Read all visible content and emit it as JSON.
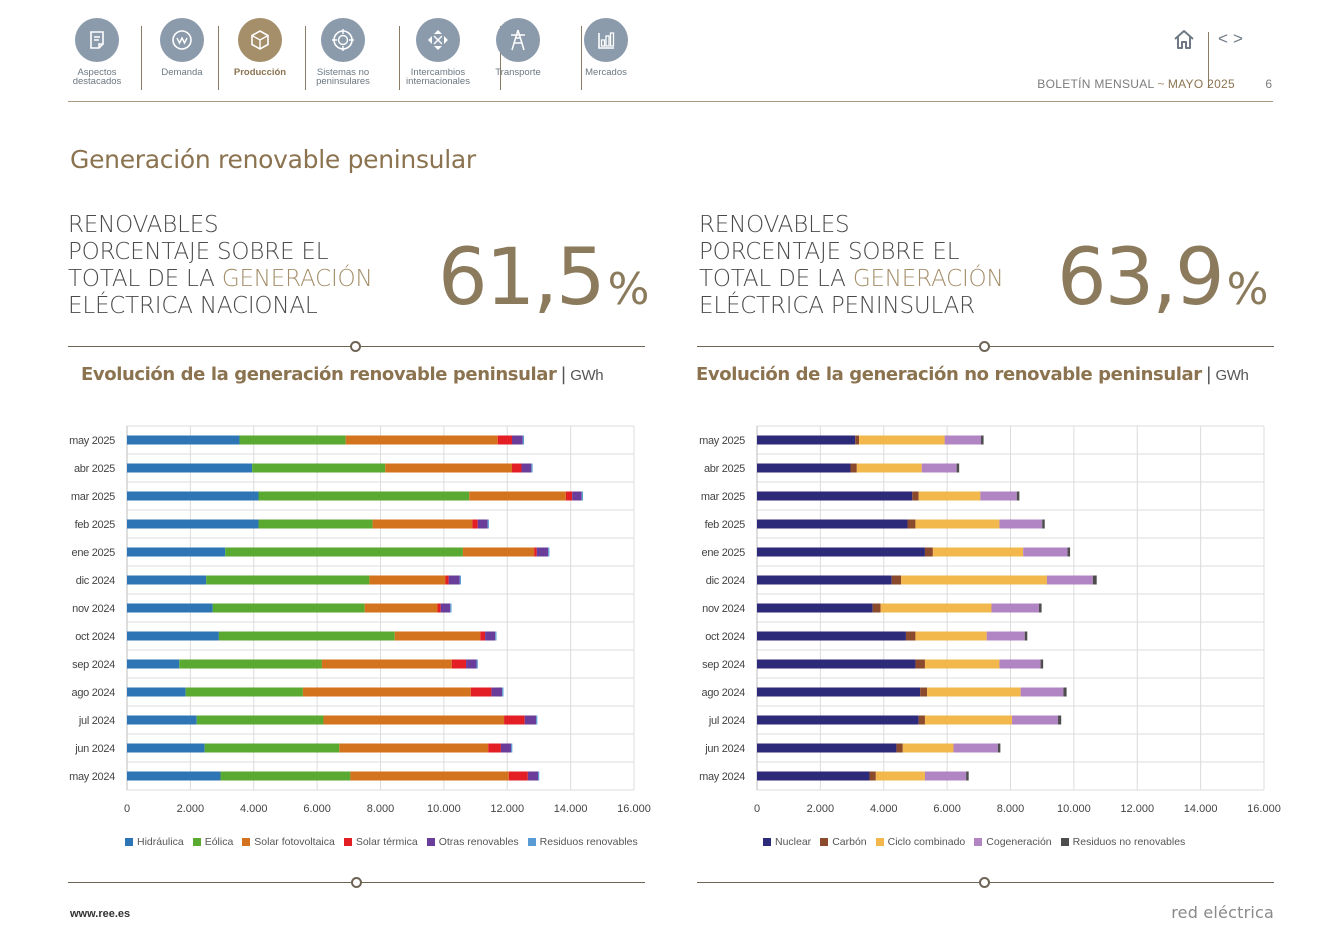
{
  "nav": {
    "items": [
      {
        "label": "Aspectos destacados",
        "icon": "document-icon",
        "active": false
      },
      {
        "label": "Demanda",
        "icon": "meter-icon",
        "active": false
      },
      {
        "label": "Producción",
        "icon": "cube-icon",
        "active": true
      },
      {
        "label": "Sistemas no peninsulares",
        "icon": "target-icon",
        "active": false
      },
      {
        "label": "Intercambios internacionales",
        "icon": "arrows-icon",
        "active": false
      },
      {
        "label": "Transporte",
        "icon": "tower-icon",
        "active": false
      },
      {
        "label": "Mercados",
        "icon": "bar-chart-icon",
        "active": false
      }
    ]
  },
  "header": {
    "prev": "<",
    "next": ">",
    "bulletin": "BOLETÍN MENSUAL",
    "separator": "~",
    "month": "MAYO 2025",
    "page": "6"
  },
  "page_title": "Generación renovable peninsular",
  "kpi_left": {
    "line1": "RENOVABLES",
    "line2": "PORCENTAJE SOBRE EL",
    "line3a": "TOTAL DE LA ",
    "line3b": "GENERACIÓN",
    "line4": "ELÉCTRICA NACIONAL",
    "value": "61,5",
    "unit": "%"
  },
  "kpi_right": {
    "line1": "RENOVABLES",
    "line2": "PORCENTAJE SOBRE EL",
    "line3a": "TOTAL DE LA ",
    "line3b": "GENERACIÓN",
    "line4": "ELÉCTRICA PENINSULAR",
    "value": "63,9",
    "unit": "%"
  },
  "footer": {
    "url": "www.ree.es",
    "brand": "red eléctrica"
  },
  "chart_data": [
    {
      "type": "bar",
      "orientation": "horizontal",
      "stacked": true,
      "title": "Evolución de la generación renovable peninsular",
      "unit": "GWh",
      "xlim": [
        0,
        16000
      ],
      "ticks": [
        0,
        2000,
        4000,
        6000,
        8000,
        10000,
        12000,
        14000,
        16000
      ],
      "tick_labels": [
        "0",
        "2.000",
        "4.000",
        "6.000",
        "8.000",
        "10.000",
        "12.000",
        "14.000",
        "16.000"
      ],
      "grid": true,
      "legend_position": "bottom",
      "categories": [
        "may 2025",
        "abr 2025",
        "mar 2025",
        "feb 2025",
        "ene 2025",
        "dic 2024",
        "nov 2024",
        "oct 2024",
        "sep 2024",
        "ago 2024",
        "jul 2024",
        "jun 2024",
        "may 2024"
      ],
      "series": [
        {
          "name": "Hidráulica",
          "color": "#2e75b6",
          "values": [
            3550,
            3950,
            4150,
            4150,
            3100,
            2500,
            2700,
            2900,
            1650,
            1850,
            2200,
            2450,
            2950
          ]
        },
        {
          "name": "Eólica",
          "color": "#5aaa32",
          "values": [
            3350,
            4200,
            6650,
            3600,
            7500,
            5150,
            4800,
            5550,
            4500,
            3700,
            4000,
            4250,
            4100
          ]
        },
        {
          "name": "Solar fotovoltaica",
          "color": "#d4731e",
          "values": [
            4800,
            4000,
            3050,
            3150,
            2250,
            2400,
            2300,
            2700,
            4100,
            5300,
            5700,
            4700,
            5000
          ]
        },
        {
          "name": "Solar térmica",
          "color": "#e31e24",
          "values": [
            450,
            300,
            200,
            170,
            80,
            100,
            100,
            150,
            450,
            650,
            650,
            400,
            600
          ]
        },
        {
          "name": "Otras renovables",
          "color": "#6a3d9a",
          "values": [
            340,
            310,
            300,
            310,
            360,
            350,
            300,
            320,
            330,
            340,
            360,
            320,
            320
          ]
        },
        {
          "name": "Residuos renovables",
          "color": "#5b9bd5",
          "values": [
            40,
            40,
            40,
            40,
            40,
            40,
            40,
            40,
            40,
            40,
            40,
            40,
            40
          ]
        }
      ]
    },
    {
      "type": "bar",
      "orientation": "horizontal",
      "stacked": true,
      "title": "Evolución de la generación no renovable peninsular",
      "unit": "GWh",
      "xlim": [
        0,
        16000
      ],
      "ticks": [
        0,
        2000,
        4000,
        6000,
        8000,
        10000,
        12000,
        14000,
        16000
      ],
      "tick_labels": [
        "0",
        "2.000",
        "4.000",
        "6.000",
        "8.000",
        "10.000",
        "12.000",
        "14.000",
        "16.000"
      ],
      "grid": true,
      "legend_position": "bottom",
      "categories": [
        "may 2025",
        "abr 2025",
        "mar 2025",
        "feb 2025",
        "ene 2025",
        "dic 2024",
        "nov 2024",
        "oct 2024",
        "sep 2024",
        "ago 2024",
        "jul 2024",
        "jun 2024",
        "may 2024"
      ],
      "series": [
        {
          "name": "Nuclear",
          "color": "#2e2a7a",
          "values": [
            3100,
            2950,
            4900,
            4750,
            5300,
            4250,
            3650,
            4700,
            5000,
            5150,
            5100,
            4400,
            3550
          ]
        },
        {
          "name": "Carbón",
          "color": "#8b4a2b",
          "values": [
            120,
            200,
            200,
            250,
            250,
            300,
            250,
            300,
            300,
            220,
            200,
            200,
            200
          ]
        },
        {
          "name": "Ciclo combinado",
          "color": "#f2b84b",
          "values": [
            2700,
            2050,
            1950,
            2650,
            2850,
            4600,
            3500,
            2250,
            2350,
            2950,
            2750,
            1600,
            1550
          ]
        },
        {
          "name": "Cogeneración",
          "color": "#b184c3",
          "values": [
            1150,
            1100,
            1150,
            1350,
            1400,
            1450,
            1500,
            1200,
            1300,
            1350,
            1450,
            1400,
            1300
          ]
        },
        {
          "name": "Residuos no renovables",
          "color": "#4d4d4d",
          "values": [
            80,
            80,
            80,
            80,
            80,
            120,
            80,
            80,
            80,
            100,
            100,
            80,
            80
          ]
        }
      ]
    }
  ]
}
